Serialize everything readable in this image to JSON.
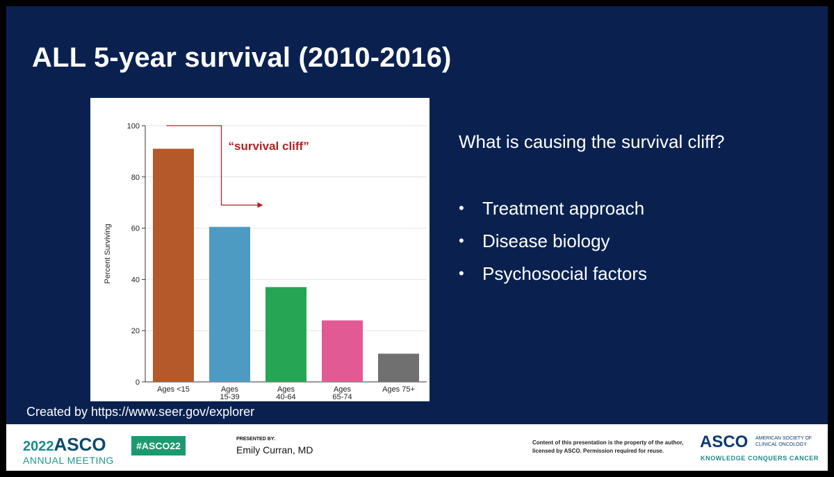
{
  "slide": {
    "title": "ALL 5-year survival (2010-2016)",
    "question": "What is causing the survival cliff?",
    "bullets": [
      "Treatment approach",
      "Disease biology",
      "Psychosocial factors"
    ],
    "credit": "Created by https://www.seer.gov/explorer"
  },
  "chart_data": {
    "type": "bar",
    "categories": [
      [
        "Ages <15"
      ],
      [
        "Ages",
        "15-39"
      ],
      [
        "Ages",
        "40-64"
      ],
      [
        "Ages",
        "65-74"
      ],
      [
        "Ages 75+"
      ]
    ],
    "values": [
      91,
      60.5,
      37,
      24,
      11
    ],
    "colors": [
      "#b5592a",
      "#4d9bc2",
      "#26a655",
      "#e15a93",
      "#707070"
    ],
    "ylabel": "Percent Surviving",
    "ylim": [
      0,
      100
    ],
    "yticks": [
      0,
      20,
      40,
      60,
      80,
      100
    ],
    "grid": true,
    "annotation": {
      "text": "“survival cliff”",
      "color": "#b22222",
      "from_category": 0,
      "to_category": 1
    }
  },
  "footer": {
    "year": "2022",
    "brand": "ASCO",
    "meeting": "ANNUAL MEETING",
    "hashtag": "#ASCO22",
    "presented_label": "PRESENTED BY:",
    "presenter": "Emily Curran, MD",
    "disclaimer": "Content of this presentation is the property of the author, licensed by ASCO. Permission required for reuse.",
    "logo": "ASCO",
    "society": "AMERICAN SOCIETY OF CLINICAL ONCOLOGY",
    "tagline": "KNOWLEDGE CONQUERS CANCER"
  }
}
